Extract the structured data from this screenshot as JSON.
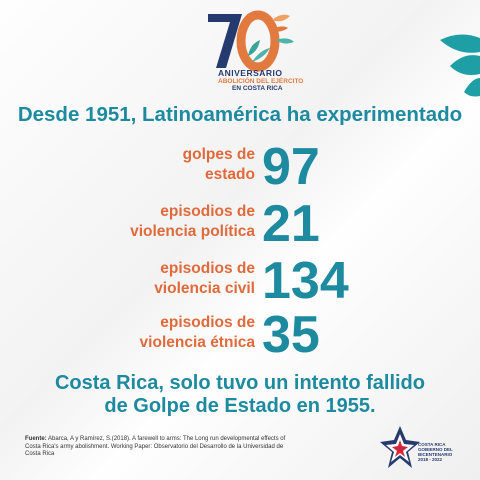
{
  "logo": {
    "number": "70",
    "line1": "ANIVERSARIO",
    "line2": "ABOLICIÓN DEL EJÉRCITO",
    "line3": "EN COSTA RICA"
  },
  "heading": "Desde 1951, Latinoamérica ha experimentado",
  "stats": [
    {
      "label_line1": "golpes de",
      "label_line2": "estado",
      "value": "97"
    },
    {
      "label_line1": "episodios de",
      "label_line2": "violencia política",
      "value": "21"
    },
    {
      "label_line1": "episodios de",
      "label_line2": "violencia civil",
      "value": "134"
    },
    {
      "label_line1": "episodios de",
      "label_line2": "violencia étnica",
      "value": "35"
    }
  ],
  "conclusion": {
    "line1": "Costa Rica, solo tuvo un intento fallido",
    "line2": "de Golpe de Estado en 1955."
  },
  "source": {
    "label": "Fuente:",
    "text": "Abarca, A y Ramírez, S.(2018). A farewell to arms: The Long run developmental effects of Costa Rica's army abolishment. Working Paper: Observatorio del Desarrollo de la Universidad de Costa Rica"
  },
  "brand": {
    "line1": "COSTA RICA",
    "line2": "GOBIERNO DEL BICENTENARIO",
    "line3": "2018 - 2022"
  },
  "colors": {
    "teal": "#1d8aa0",
    "orange": "#e06a3b",
    "navy": "#253a6e"
  }
}
